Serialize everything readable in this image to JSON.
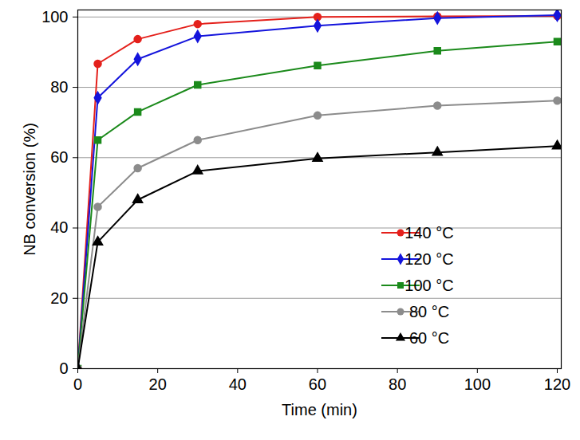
{
  "chart_data": {
    "type": "line",
    "x_label": "Time (min)",
    "y_label": "NB conversion (%)",
    "x": [
      0,
      5,
      15,
      30,
      60,
      90,
      120
    ],
    "series": [
      {
        "name": "140 °C",
        "color": "#e4201b",
        "marker": "circle",
        "line_style": "solid",
        "values": [
          0,
          86.7,
          93.7,
          98,
          100,
          100.2,
          100.3
        ]
      },
      {
        "name": "120 °C",
        "color": "#1414dc",
        "marker": "diamond",
        "line_style": "solid",
        "values": [
          0,
          77,
          88,
          94.5,
          97.5,
          99.7,
          100.5
        ]
      },
      {
        "name": "100 °C",
        "color": "#1b8a1b",
        "marker": "square",
        "line_style": "solid",
        "values": [
          0,
          65,
          73,
          80.7,
          86.2,
          90.4,
          93
        ]
      },
      {
        "name": "80 °C",
        "color": "#8c8c8c",
        "marker": "circle",
        "line_style": "solid",
        "values": [
          0,
          46,
          57,
          65,
          72,
          74.8,
          76.2
        ]
      },
      {
        "name": "60 °C",
        "color": "#000000",
        "marker": "triangle",
        "line_style": "solid",
        "values": [
          0,
          36,
          48,
          56.2,
          59.8,
          61.5,
          63.3
        ]
      }
    ],
    "xlim": [
      0,
      121
    ],
    "ylim": [
      0,
      102
    ],
    "xticks": [
      0,
      20,
      40,
      60,
      80,
      100,
      120
    ],
    "yticks": [
      0,
      20,
      40,
      60,
      80,
      100
    ],
    "grid": true,
    "legend": "right"
  }
}
